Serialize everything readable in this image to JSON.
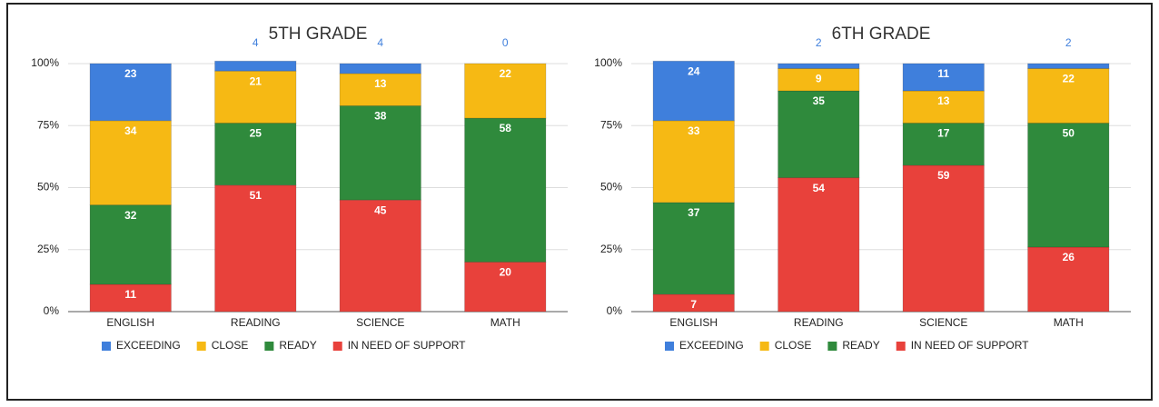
{
  "chart_data": [
    {
      "type": "bar",
      "stacked": true,
      "title": "5TH GRADE",
      "categories": [
        "ENGLISH",
        "READING",
        "SCIENCE",
        "MATH"
      ],
      "series": [
        {
          "name": "EXCEEDING",
          "color": "#3f7fdc",
          "values": [
            23,
            4,
            4,
            0
          ]
        },
        {
          "name": "CLOSE",
          "color": "#f6b914",
          "values": [
            34,
            21,
            13,
            22
          ]
        },
        {
          "name": "READY",
          "color": "#2f8a3c",
          "values": [
            32,
            25,
            38,
            58
          ]
        },
        {
          "name": "IN NEED OF SUPPORT",
          "color": "#e8413b",
          "values": [
            11,
            51,
            45,
            20
          ]
        }
      ],
      "ylim": [
        0,
        100
      ],
      "yticks": [
        {
          "value": 0,
          "label": "0%"
        },
        {
          "value": 25,
          "label": "25%"
        },
        {
          "value": 50,
          "label": "50%"
        },
        {
          "value": 75,
          "label": "75%"
        },
        {
          "value": 100,
          "label": "100%"
        }
      ],
      "grid": true,
      "legend": "bottom"
    },
    {
      "type": "bar",
      "stacked": true,
      "title": "6TH GRADE",
      "categories": [
        "ENGLISH",
        "READING",
        "SCIENCE",
        "MATH"
      ],
      "series": [
        {
          "name": "EXCEEDING",
          "color": "#3f7fdc",
          "values": [
            24,
            2,
            11,
            2
          ]
        },
        {
          "name": "CLOSE",
          "color": "#f6b914",
          "values": [
            33,
            9,
            13,
            22
          ]
        },
        {
          "name": "READY",
          "color": "#2f8a3c",
          "values": [
            37,
            35,
            17,
            50
          ]
        },
        {
          "name": "IN NEED OF SUPPORT",
          "color": "#e8413b",
          "values": [
            7,
            54,
            59,
            26
          ]
        }
      ],
      "ylim": [
        0,
        100
      ],
      "yticks": [
        {
          "value": 0,
          "label": "0%"
        },
        {
          "value": 25,
          "label": "25%"
        },
        {
          "value": 50,
          "label": "50%"
        },
        {
          "value": 75,
          "label": "75%"
        },
        {
          "value": 100,
          "label": "100%"
        }
      ],
      "grid": true,
      "legend": "bottom"
    }
  ]
}
